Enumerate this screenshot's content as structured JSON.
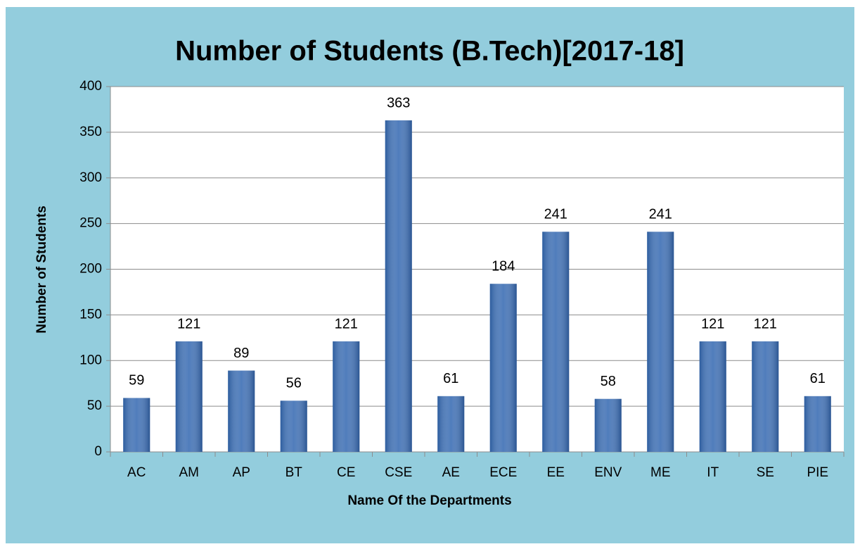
{
  "chart_data": {
    "type": "bar",
    "title": "Number of Students (B.Tech)[2017-18]",
    "x_label": "Name Of the Departments",
    "y_label": "Number of Students",
    "categories": [
      "AC",
      "AM",
      "AP",
      "BT",
      "CE",
      "CSE",
      "AE",
      "ECE",
      "EE",
      "ENV",
      "ME",
      "IT",
      "SE",
      "PIE"
    ],
    "values": [
      59,
      121,
      89,
      56,
      121,
      363,
      61,
      184,
      241,
      58,
      241,
      121,
      121,
      61
    ],
    "color": "#3c6eb4",
    "ylim": [
      0,
      400
    ],
    "yticks": [
      0,
      50,
      100,
      150,
      200,
      250,
      300,
      350,
      400
    ],
    "grid": true
  }
}
